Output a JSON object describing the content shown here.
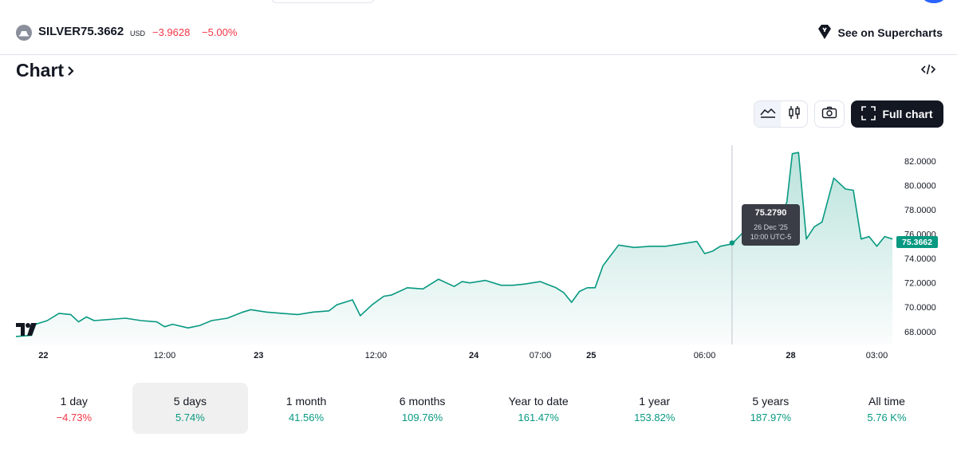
{
  "header": {
    "symbol": "SILVER",
    "price": "75.3662",
    "currency": "USD",
    "change": "−3.9628",
    "change_pct": "−5.00%",
    "supercharts_label": "See on Supercharts"
  },
  "section": {
    "title": "Chart",
    "full_chart_label": "Full chart"
  },
  "tooltip": {
    "value": "75.2790",
    "date": "26 Dec '25",
    "time": "10:00 UTC-5"
  },
  "last_price_label": "75.3662",
  "colors": {
    "line": "#089981",
    "negative": "#f23645",
    "positive": "#089981",
    "tooltip_bg": "#3a3d45"
  },
  "periods": [
    {
      "label": "1 day",
      "value": "−4.73%",
      "dir": "neg",
      "active": false
    },
    {
      "label": "5 days",
      "value": "5.74%",
      "dir": "pos",
      "active": true
    },
    {
      "label": "1 month",
      "value": "41.56%",
      "dir": "pos",
      "active": false
    },
    {
      "label": "6 months",
      "value": "109.76%",
      "dir": "pos",
      "active": false
    },
    {
      "label": "Year to date",
      "value": "161.47%",
      "dir": "pos",
      "active": false
    },
    {
      "label": "1 year",
      "value": "153.82%",
      "dir": "pos",
      "active": false
    },
    {
      "label": "5 years",
      "value": "187.97%",
      "dir": "pos",
      "active": false
    },
    {
      "label": "All time",
      "value": "5.76 K%",
      "dir": "pos",
      "active": false
    }
  ],
  "chart_data": {
    "type": "area",
    "ylim": [
      67.2,
      83.3
    ],
    "y_ticks": [
      "82.0000",
      "80.0000",
      "78.0000",
      "76.0000",
      "74.0000",
      "72.0000",
      "70.0000",
      "68.0000"
    ],
    "x_ticks": [
      {
        "label": "22",
        "t": 0.035,
        "bold": true
      },
      {
        "label": "12:00",
        "t": 0.19,
        "bold": false
      },
      {
        "label": "23",
        "t": 0.31,
        "bold": true
      },
      {
        "label": "12:00",
        "t": 0.46,
        "bold": false
      },
      {
        "label": "24",
        "t": 0.585,
        "bold": true
      },
      {
        "label": "07:00",
        "t": 0.67,
        "bold": false
      },
      {
        "label": "25",
        "t": 0.735,
        "bold": true
      },
      {
        "label": "06:00",
        "t": 0.88,
        "bold": false
      },
      {
        "label": "28",
        "t": 0.99,
        "bold": true
      },
      {
        "label": "03:00",
        "t": 1.1,
        "bold": false
      }
    ],
    "x_range": [
      0,
      1.125
    ],
    "series": [
      {
        "points": [
          [
            0.0,
            67.6
          ],
          [
            0.02,
            67.7
          ],
          [
            0.025,
            68.6
          ],
          [
            0.04,
            68.9
          ],
          [
            0.055,
            69.5
          ],
          [
            0.07,
            69.4
          ],
          [
            0.08,
            68.8
          ],
          [
            0.09,
            69.2
          ],
          [
            0.1,
            68.9
          ],
          [
            0.12,
            69.0
          ],
          [
            0.14,
            69.1
          ],
          [
            0.16,
            68.9
          ],
          [
            0.18,
            68.8
          ],
          [
            0.19,
            68.4
          ],
          [
            0.2,
            68.6
          ],
          [
            0.22,
            68.3
          ],
          [
            0.235,
            68.5
          ],
          [
            0.25,
            68.9
          ],
          [
            0.27,
            69.1
          ],
          [
            0.29,
            69.6
          ],
          [
            0.3,
            69.8
          ],
          [
            0.32,
            69.6
          ],
          [
            0.34,
            69.5
          ],
          [
            0.36,
            69.4
          ],
          [
            0.38,
            69.6
          ],
          [
            0.4,
            69.7
          ],
          [
            0.41,
            70.2
          ],
          [
            0.43,
            70.6
          ],
          [
            0.44,
            69.3
          ],
          [
            0.455,
            70.2
          ],
          [
            0.47,
            70.9
          ],
          [
            0.48,
            71.0
          ],
          [
            0.5,
            71.6
          ],
          [
            0.52,
            71.5
          ],
          [
            0.54,
            72.3
          ],
          [
            0.56,
            71.7
          ],
          [
            0.57,
            72.1
          ],
          [
            0.58,
            72.0
          ],
          [
            0.6,
            72.2
          ],
          [
            0.62,
            71.8
          ],
          [
            0.635,
            71.8
          ],
          [
            0.65,
            71.9
          ],
          [
            0.67,
            72.1
          ],
          [
            0.69,
            71.6
          ],
          [
            0.7,
            71.2
          ],
          [
            0.71,
            70.4
          ],
          [
            0.72,
            71.3
          ],
          [
            0.73,
            71.6
          ],
          [
            0.74,
            71.6
          ],
          [
            0.75,
            73.4
          ],
          [
            0.77,
            75.1
          ],
          [
            0.79,
            74.9
          ],
          [
            0.81,
            75.0
          ],
          [
            0.83,
            75.0
          ],
          [
            0.85,
            75.2
          ],
          [
            0.87,
            75.4
          ],
          [
            0.88,
            74.4
          ],
          [
            0.89,
            74.6
          ],
          [
            0.9,
            75.0
          ],
          [
            0.915,
            75.2
          ],
          [
            0.93,
            76.2
          ],
          [
            0.95,
            76.6
          ],
          [
            0.97,
            76.8
          ],
          [
            0.985,
            78.6
          ],
          [
            0.992,
            82.6
          ],
          [
            1.0,
            82.7
          ],
          [
            1.01,
            75.6
          ],
          [
            1.02,
            76.6
          ],
          [
            1.03,
            77.0
          ],
          [
            1.045,
            80.6
          ],
          [
            1.06,
            79.7
          ],
          [
            1.07,
            79.6
          ],
          [
            1.08,
            75.6
          ],
          [
            1.09,
            75.8
          ],
          [
            1.1,
            75.0
          ],
          [
            1.11,
            75.8
          ],
          [
            1.12,
            75.6
          ]
        ]
      }
    ],
    "marker_t": 0.915,
    "marker_value": 75.279,
    "last_value": 75.3662
  }
}
